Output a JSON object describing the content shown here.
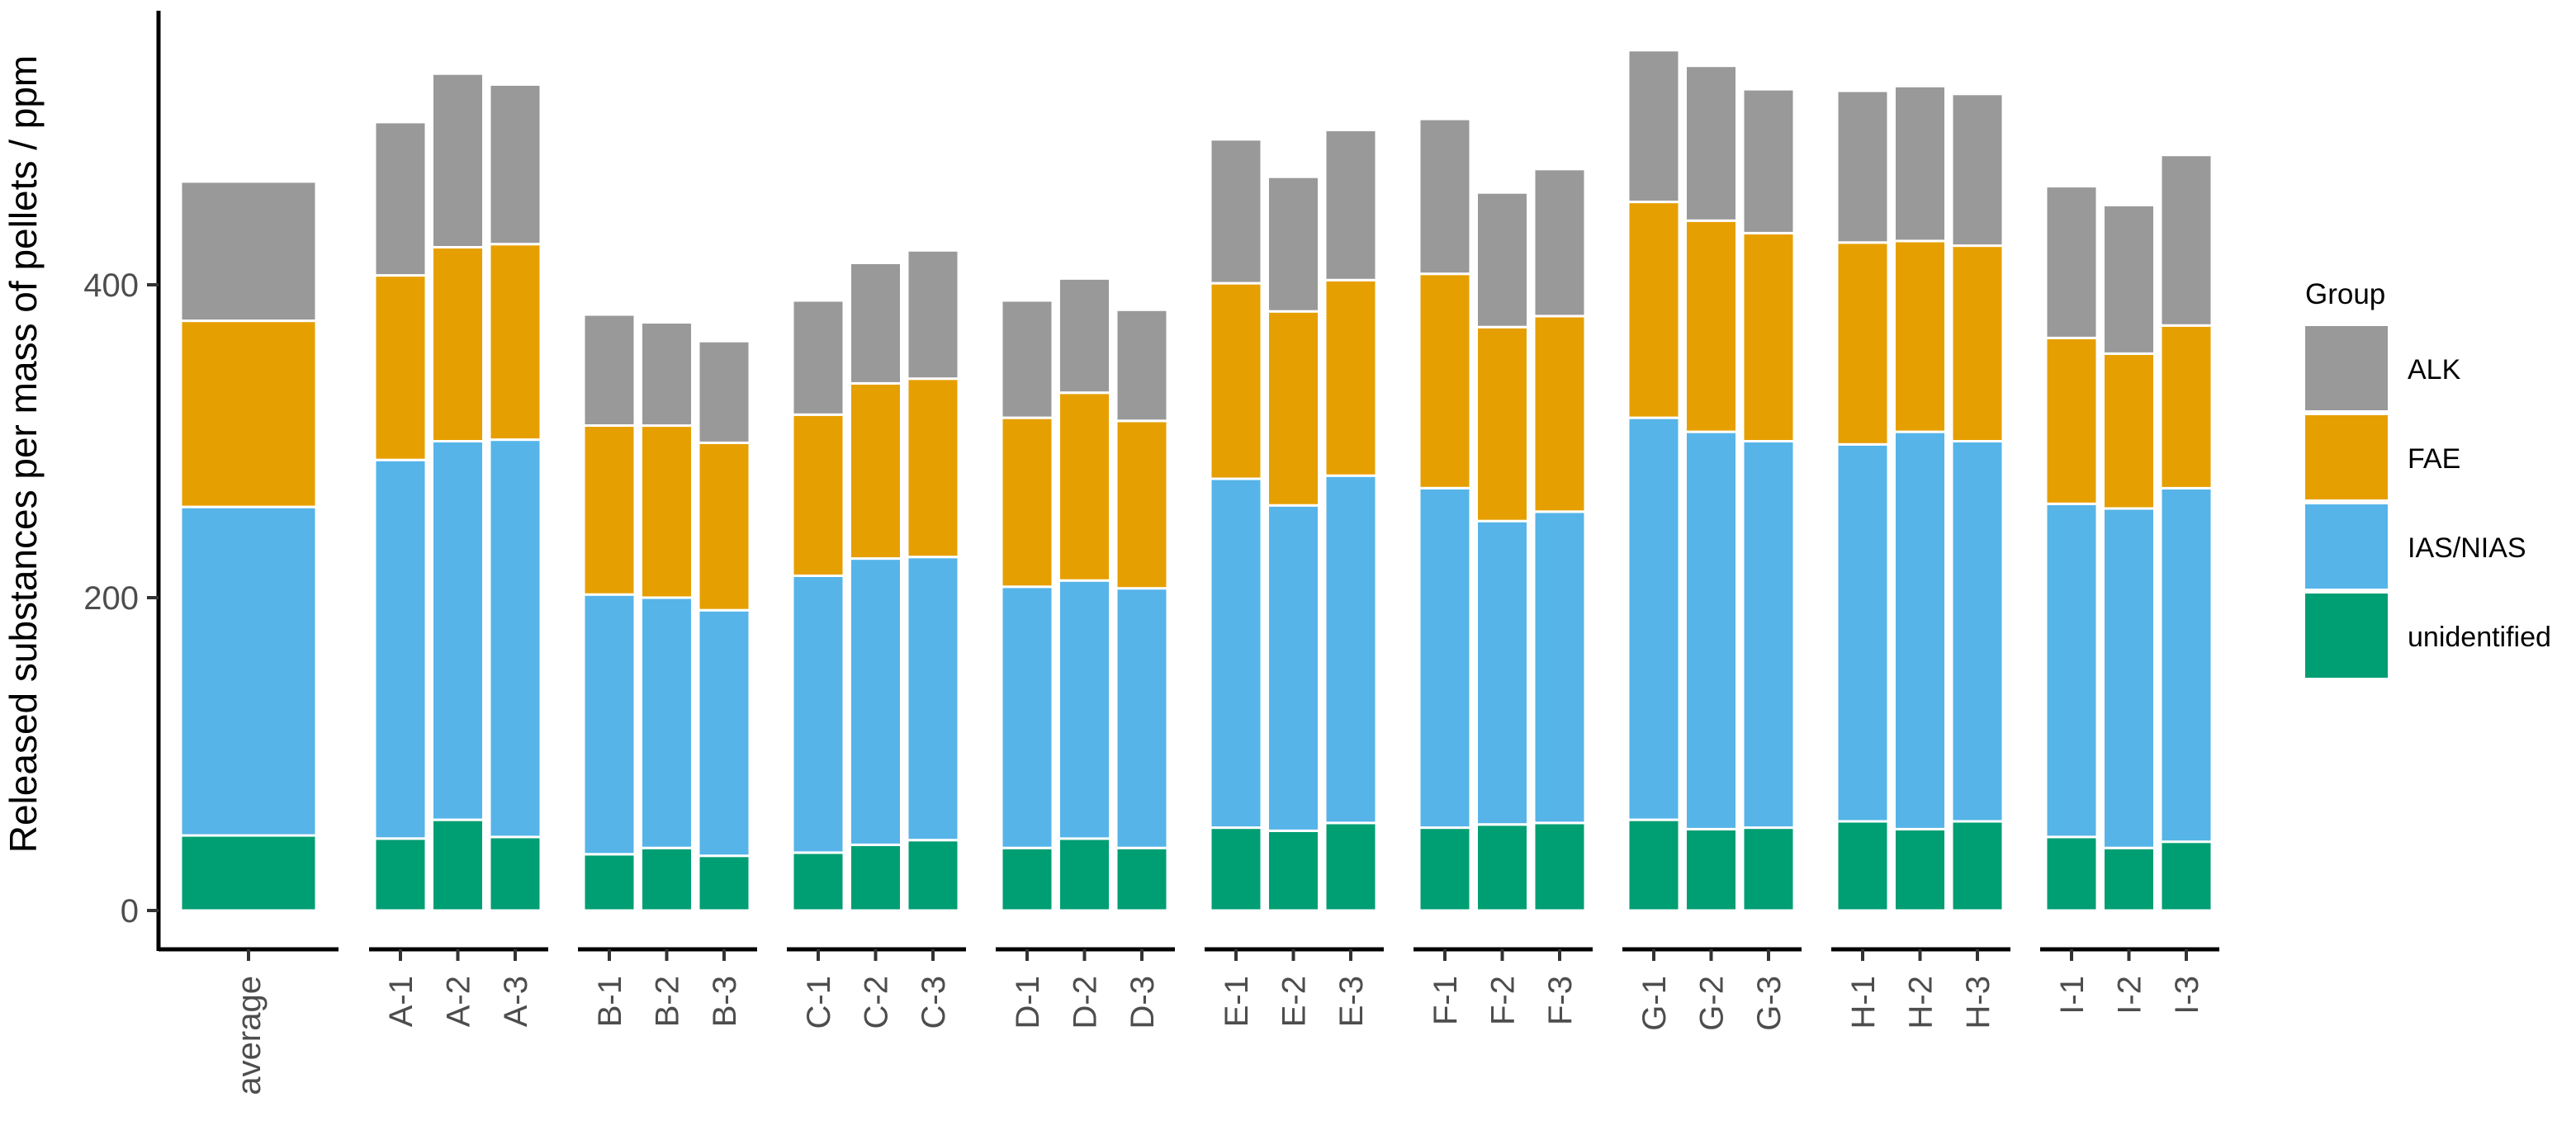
{
  "chart_data": {
    "type": "stacked_bar",
    "title": "",
    "xlabel": "",
    "ylabel": "Released substances per mass of pellets / ppm",
    "ylim": [
      0,
      570
    ],
    "yticks": [
      0,
      200,
      400
    ],
    "groups": [
      {
        "name": "avg",
        "categories": [
          "average"
        ]
      },
      {
        "name": "A",
        "categories": [
          "A-1",
          "A-2",
          "A-3"
        ]
      },
      {
        "name": "B",
        "categories": [
          "B-1",
          "B-2",
          "B-3"
        ]
      },
      {
        "name": "C",
        "categories": [
          "C-1",
          "C-2",
          "C-3"
        ]
      },
      {
        "name": "D",
        "categories": [
          "D-1",
          "D-2",
          "D-3"
        ]
      },
      {
        "name": "E",
        "categories": [
          "E-1",
          "E-2",
          "E-3"
        ]
      },
      {
        "name": "F",
        "categories": [
          "F-1",
          "F-2",
          "F-3"
        ]
      },
      {
        "name": "G",
        "categories": [
          "G-1",
          "G-2",
          "G-3"
        ]
      },
      {
        "name": "H",
        "categories": [
          "H-1",
          "H-2",
          "H-3"
        ]
      },
      {
        "name": "I",
        "categories": [
          "I-1",
          "I-2",
          "I-3"
        ]
      }
    ],
    "series": [
      {
        "name": "unidentified",
        "color": "#009E73",
        "values": [
          48,
          46,
          58,
          47,
          36,
          40,
          35,
          37,
          42,
          45,
          40,
          46,
          40,
          53,
          51,
          56,
          53,
          55,
          56,
          58,
          52,
          53,
          57,
          52,
          57,
          47,
          40,
          44
        ]
      },
      {
        "name": "IAS/NIAS",
        "color": "#56B4E9",
        "values": [
          210,
          242,
          242,
          254,
          166,
          160,
          157,
          177,
          183,
          181,
          167,
          165,
          166,
          223,
          208,
          222,
          217,
          194,
          199,
          257,
          254,
          247,
          241,
          254,
          243,
          213,
          217,
          226
        ]
      },
      {
        "name": "FAE",
        "color": "#E69F00",
        "values": [
          119,
          118,
          124,
          125,
          108,
          110,
          107,
          103,
          112,
          114,
          108,
          120,
          107,
          125,
          124,
          125,
          137,
          124,
          125,
          138,
          135,
          133,
          129,
          122,
          125,
          106,
          99,
          104
        ]
      },
      {
        "name": "ALK",
        "color": "#999999",
        "values": [
          89,
          98,
          111,
          102,
          71,
          66,
          65,
          73,
          77,
          82,
          75,
          73,
          71,
          92,
          86,
          96,
          99,
          86,
          94,
          97,
          99,
          92,
          97,
          99,
          97,
          97,
          95,
          109
        ]
      }
    ],
    "legend": {
      "title": "Group",
      "placement": "right",
      "order": [
        "ALK",
        "FAE",
        "IAS/NIAS",
        "unidentified"
      ]
    }
  }
}
